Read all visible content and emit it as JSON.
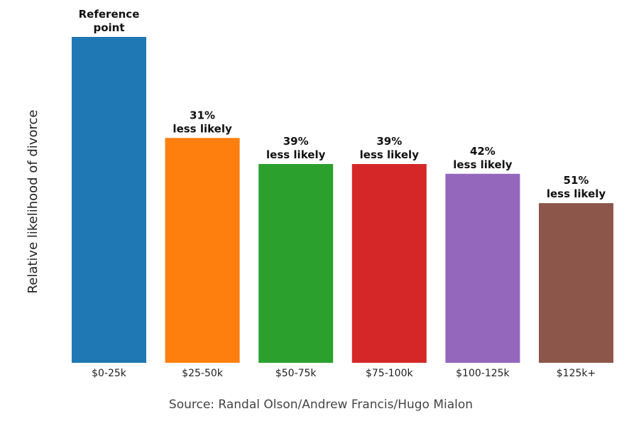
{
  "chart_data": {
    "type": "bar",
    "title": "",
    "xlabel": "",
    "ylabel": "Relative likelihood of divorce",
    "categories": [
      "$0-25k",
      "$25-50k",
      "$50-75k",
      "$75-100k",
      "$100-125k",
      "$125k+"
    ],
    "values": [
      1.0,
      0.69,
      0.61,
      0.61,
      0.58,
      0.49
    ],
    "bar_labels": [
      [
        "Reference",
        "point"
      ],
      [
        "31%",
        "less likely"
      ],
      [
        "39%",
        "less likely"
      ],
      [
        "39%",
        "less likely"
      ],
      [
        "42%",
        "less likely"
      ],
      [
        "51%",
        "less likely"
      ]
    ],
    "colors": [
      "#1f77b4",
      "#ff7f0e",
      "#2ca02c",
      "#d62728",
      "#9467bd",
      "#8c564b"
    ],
    "ylim": [
      0,
      1.0
    ],
    "grid": false,
    "source": "Source: Randal Olson/Andrew Francis/Hugo Mialon"
  }
}
